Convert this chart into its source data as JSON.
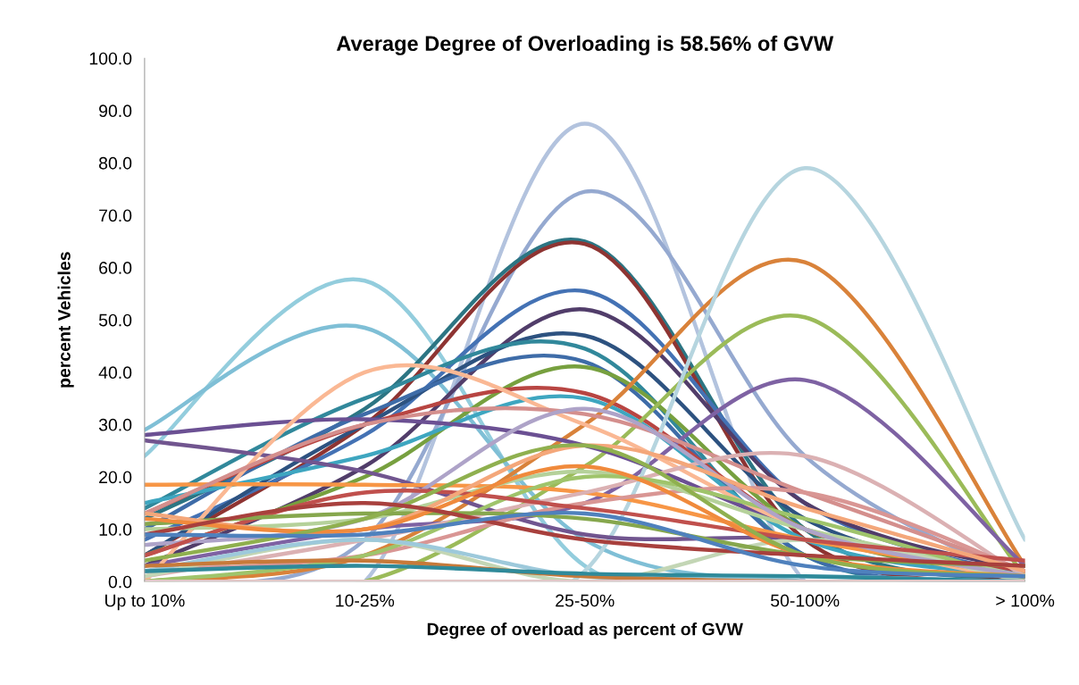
{
  "chart_data": {
    "type": "line",
    "title": "Average Degree of Overloading is 58.56% of GVW",
    "xlabel": "Degree of overload as percent of GVW",
    "ylabel": "percent Vehicles",
    "categories": [
      "Up to 10%",
      "10-25%",
      "25-50%",
      "50-100%",
      "> 100%"
    ],
    "ylim": [
      0,
      100
    ],
    "yticks": [
      {
        "value": 0,
        "label": "0.0"
      },
      {
        "value": 10,
        "label": "10.0"
      },
      {
        "value": 20,
        "label": "20.0"
      },
      {
        "value": 30,
        "label": "30.0"
      },
      {
        "value": 40,
        "label": "40.0"
      },
      {
        "value": 50,
        "label": "50.0"
      },
      {
        "value": 60,
        "label": "60.0"
      },
      {
        "value": 70,
        "label": "70.0"
      },
      {
        "value": 80,
        "label": "80.0"
      },
      {
        "value": 90,
        "label": "90.0"
      },
      {
        "value": 100,
        "label": "100.0"
      }
    ],
    "grid": false,
    "marker": "none",
    "line_style": "solid",
    "series": [
      {
        "color": "#93cddd",
        "values": [
          24,
          57.5,
          3,
          0,
          0
        ]
      },
      {
        "color": "#7fbfd6",
        "values": [
          29,
          48.5,
          8,
          0,
          0
        ]
      },
      {
        "color": "#b3c3de",
        "values": [
          0,
          0,
          87.5,
          0,
          0
        ]
      },
      {
        "color": "#95a9d0",
        "values": [
          0,
          8,
          74.5,
          24,
          0
        ]
      },
      {
        "color": "#2c7583",
        "values": [
          12,
          33,
          65,
          10,
          0
        ]
      },
      {
        "color": "#8e3432",
        "values": [
          5,
          30,
          64.5,
          8,
          0
        ]
      },
      {
        "color": "#4472b4",
        "values": [
          8,
          28,
          55.5,
          15,
          1
        ]
      },
      {
        "color": "#513d6a",
        "values": [
          3,
          22,
          52,
          15,
          2
        ]
      },
      {
        "color": "#2d5280",
        "values": [
          5,
          30,
          47,
          12,
          1
        ]
      },
      {
        "color": "#31889b",
        "values": [
          14,
          35,
          44.5,
          5,
          0
        ]
      },
      {
        "color": "#3e6ca8",
        "values": [
          10,
          32,
          42,
          5,
          0
        ]
      },
      {
        "color": "#77a03f",
        "values": [
          5,
          20,
          41,
          10,
          1
        ]
      },
      {
        "color": "#b84542",
        "values": [
          13,
          30,
          36,
          10,
          2
        ]
      },
      {
        "color": "#3ea6c0",
        "values": [
          15,
          24,
          35,
          8,
          1
        ]
      },
      {
        "color": "#d9823a",
        "values": [
          0,
          5,
          30,
          61,
          3
        ]
      },
      {
        "color": "#9bbb59",
        "values": [
          0,
          0,
          22,
          50.5,
          1
        ]
      },
      {
        "color": "#7e62a3",
        "values": [
          3,
          10,
          15,
          38.5,
          3
        ]
      },
      {
        "color": "#b6d5df",
        "values": [
          0,
          0,
          2,
          79,
          8
        ]
      },
      {
        "color": "#6b5093",
        "values": [
          28,
          31,
          26,
          10,
          1
        ]
      },
      {
        "color": "#71558f",
        "values": [
          27,
          21,
          9,
          8,
          1
        ]
      },
      {
        "color": "#fab894",
        "values": [
          0,
          40,
          30,
          10,
          0
        ]
      },
      {
        "color": "#f79646",
        "values": [
          18.5,
          18.5,
          17,
          8,
          1
        ]
      },
      {
        "color": "#d48f8d",
        "values": [
          13,
          30,
          32,
          17,
          2
        ]
      },
      {
        "color": "#dbb1b3",
        "values": [
          1,
          8,
          17,
          24,
          1
        ]
      },
      {
        "color": "#d99694",
        "values": [
          2,
          5,
          15,
          17,
          2
        ]
      },
      {
        "color": "#b5d19a",
        "values": [
          10,
          12,
          21,
          10,
          1
        ]
      },
      {
        "color": "#9fc46b",
        "values": [
          0,
          5,
          20,
          12,
          0
        ]
      },
      {
        "color": "#c3d6b5",
        "values": [
          1,
          8,
          0,
          8,
          0
        ]
      },
      {
        "color": "#9dc9db",
        "values": [
          2,
          8,
          1,
          1,
          0
        ]
      },
      {
        "color": "#aea3c8",
        "values": [
          7,
          12,
          33,
          10,
          1
        ]
      },
      {
        "color": "#c77a3a",
        "values": [
          3,
          4,
          1,
          0,
          0
        ]
      },
      {
        "color": "#2f8a9a",
        "values": [
          2,
          3,
          1.5,
          1,
          0
        ]
      },
      {
        "color": "#c0504d",
        "values": [
          5,
          17,
          14,
          8,
          4
        ]
      },
      {
        "color": "#86a74d",
        "values": [
          11,
          13,
          12,
          5,
          3
        ]
      },
      {
        "color": "#f4a77a",
        "values": [
          13,
          10,
          26,
          14,
          2
        ]
      },
      {
        "color": "#f08a3c",
        "values": [
          12,
          10,
          22,
          5,
          1
        ]
      },
      {
        "color": "#e2c5c5",
        "values": [
          0,
          0,
          0,
          0,
          0
        ]
      },
      {
        "color": "#8fb04f",
        "values": [
          4,
          12,
          26,
          5,
          1
        ]
      },
      {
        "color": "#a8403d",
        "values": [
          9,
          15,
          8,
          5,
          3
        ]
      },
      {
        "color": "#4f81bd",
        "values": [
          9,
          9,
          13,
          3,
          1
        ]
      }
    ]
  }
}
